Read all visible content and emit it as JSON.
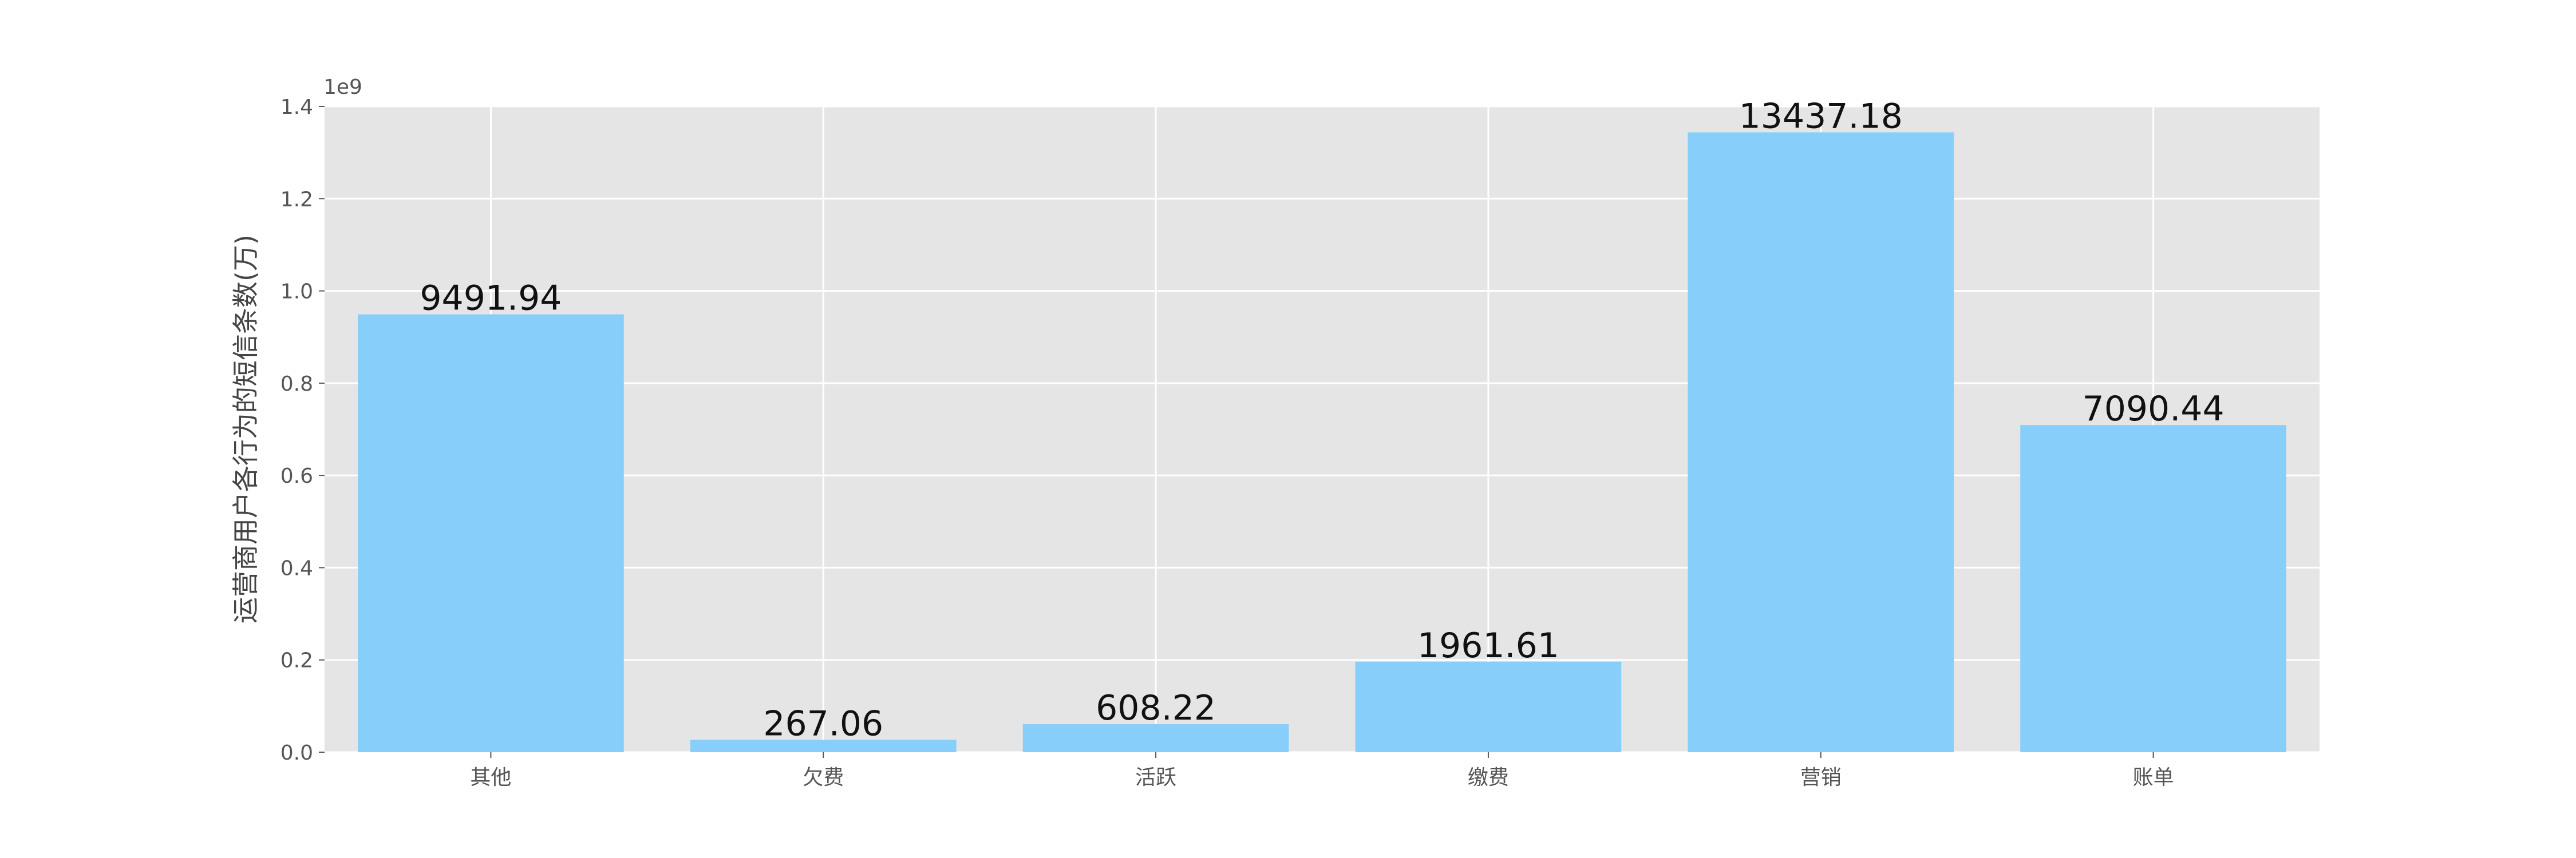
{
  "chart_data": {
    "type": "bar",
    "categories": [
      "其他",
      "欠费",
      "活跃",
      "缴费",
      "营销",
      "账单"
    ],
    "values": [
      949194000,
      26706000,
      60822000,
      196161000,
      1343718000,
      709044000
    ],
    "data_labels": [
      "9491.94",
      "267.06",
      "608.22",
      "1961.61",
      "13437.18",
      "7090.44"
    ],
    "ylabel": "运营商用户各行为的短信条数(万)",
    "xlabel": "",
    "title": "",
    "ylim": [
      0,
      1400000000
    ],
    "y_ticks": [
      0,
      200000000,
      400000000,
      600000000,
      800000000,
      1000000000,
      1200000000,
      1400000000
    ],
    "y_tick_labels": [
      "0.0",
      "0.2",
      "0.4",
      "0.6",
      "0.8",
      "1.0",
      "1.2",
      "1.4"
    ],
    "y_offset_label": "1e9",
    "grid": true,
    "colors": {
      "bar": "#87CEFA",
      "plot_bg": "#E5E5E5",
      "grid": "#FFFFFF"
    }
  }
}
